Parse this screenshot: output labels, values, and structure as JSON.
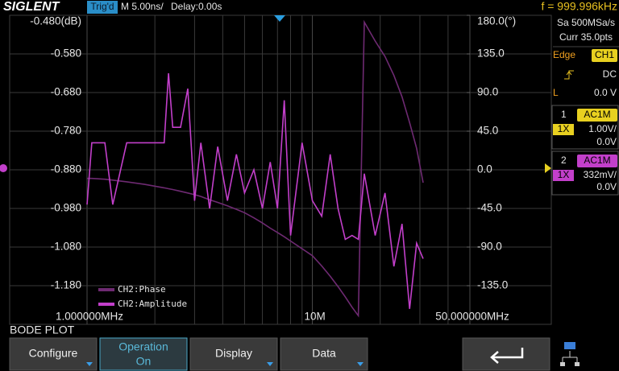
{
  "header": {
    "brand": "SIGLENT",
    "trigger_status": "Trig'd",
    "timebase": "M 5.00ns/",
    "delay": "Delay:0.00s",
    "frequency": "f = 999.996kHz"
  },
  "chart_data": {
    "type": "line",
    "log_x": true,
    "grid": true,
    "x": [
      1,
      1.05,
      1.2,
      1.3,
      1.5,
      1.8,
      2.2,
      2.3,
      2.4,
      2.6,
      2.8,
      3.0,
      3.2,
      3.5,
      3.8,
      4.2,
      4.6,
      5.0,
      5.5,
      6.0,
      6.5,
      7.0,
      7.5,
      8.0,
      9.0,
      10,
      11,
      12,
      13,
      14,
      15,
      16,
      17,
      19,
      21,
      23,
      25,
      27,
      29,
      31
    ],
    "series": [
      {
        "name": "CH2:Phase",
        "color": "#6e2a72",
        "axis": "y2",
        "values": [
          -10,
          -10,
          -11,
          -12,
          -14,
          -17,
          -21,
          -22,
          -23,
          -25,
          -27,
          -29,
          -31,
          -35,
          -38,
          -42,
          -46,
          -50,
          -56,
          -62,
          -68,
          -73,
          -78,
          -83,
          -92,
          -100,
          -112,
          -124,
          -136,
          -148,
          -160,
          -170,
          172,
          150,
          132,
          110,
          85,
          55,
          25,
          -15
        ]
      },
      {
        "name": "CH2:Amplitude",
        "color": "#c23fca",
        "values": [
          -0.97,
          -0.81,
          -0.81,
          -0.97,
          -0.81,
          -0.81,
          -0.81,
          -0.63,
          -0.77,
          -0.77,
          -0.67,
          -0.96,
          -0.81,
          -0.98,
          -0.82,
          -0.96,
          -0.84,
          -0.94,
          -0.88,
          -0.98,
          -0.86,
          -0.98,
          -0.7,
          -1.05,
          -0.81,
          -0.96,
          -1.0,
          -0.84,
          -0.98,
          -1.06,
          -1.05,
          -1.06,
          -0.89,
          -1.05,
          -0.94,
          -1.13,
          -1.02,
          -1.24,
          -1.07,
          -1.11
        ]
      }
    ],
    "xlim": [
      1,
      50
    ],
    "xticks": [
      {
        "value": 1,
        "label": "1.000000MHz"
      },
      {
        "value": 10,
        "label": "10M"
      },
      {
        "value": 50,
        "label": "50.000000MHz"
      }
    ],
    "ylim": [
      -1.28,
      -0.48
    ],
    "yticks": [
      {
        "value": -0.48,
        "label": "-0.480(dB)"
      },
      {
        "value": -0.58,
        "label": "-0.580"
      },
      {
        "value": -0.68,
        "label": "-0.680"
      },
      {
        "value": -0.78,
        "label": "-0.780"
      },
      {
        "value": -0.88,
        "label": "-0.880"
      },
      {
        "value": -0.98,
        "label": "-0.980"
      },
      {
        "value": -1.08,
        "label": "-1.080"
      },
      {
        "value": -1.18,
        "label": "-1.180"
      }
    ],
    "y2lim": [
      -180,
      180
    ],
    "y2ticks": [
      {
        "value": 180,
        "label": "180.0(°)"
      },
      {
        "value": 135,
        "label": "135.0"
      },
      {
        "value": 90,
        "label": "90.0"
      },
      {
        "value": 45,
        "label": "45.0"
      },
      {
        "value": 0,
        "label": "0.0"
      },
      {
        "value": -45,
        "label": "-45.0"
      },
      {
        "value": -90,
        "label": "-90.0"
      },
      {
        "value": -135,
        "label": "-135.0"
      }
    ]
  },
  "side_panel": {
    "sample_rate": "Sa 500MSa/s",
    "current": "Curr 35.0pts",
    "trigger_type": "Edge",
    "trigger_source": "CH1",
    "coupling": "DC",
    "level_label": "L",
    "level": "0.0 V",
    "channels": [
      {
        "number": "1",
        "coupling": "AC1M",
        "probe": "1X",
        "scale": "1.00V/",
        "offset": "0.0V"
      },
      {
        "number": "2",
        "coupling": "AC1M",
        "probe": "1X",
        "scale": "332mV/",
        "offset": "0.0V"
      }
    ]
  },
  "footer": {
    "mode": "BODE PLOT",
    "softkeys": [
      "Configure",
      "Operation",
      "Display",
      "Data"
    ],
    "operation_state": "On"
  }
}
